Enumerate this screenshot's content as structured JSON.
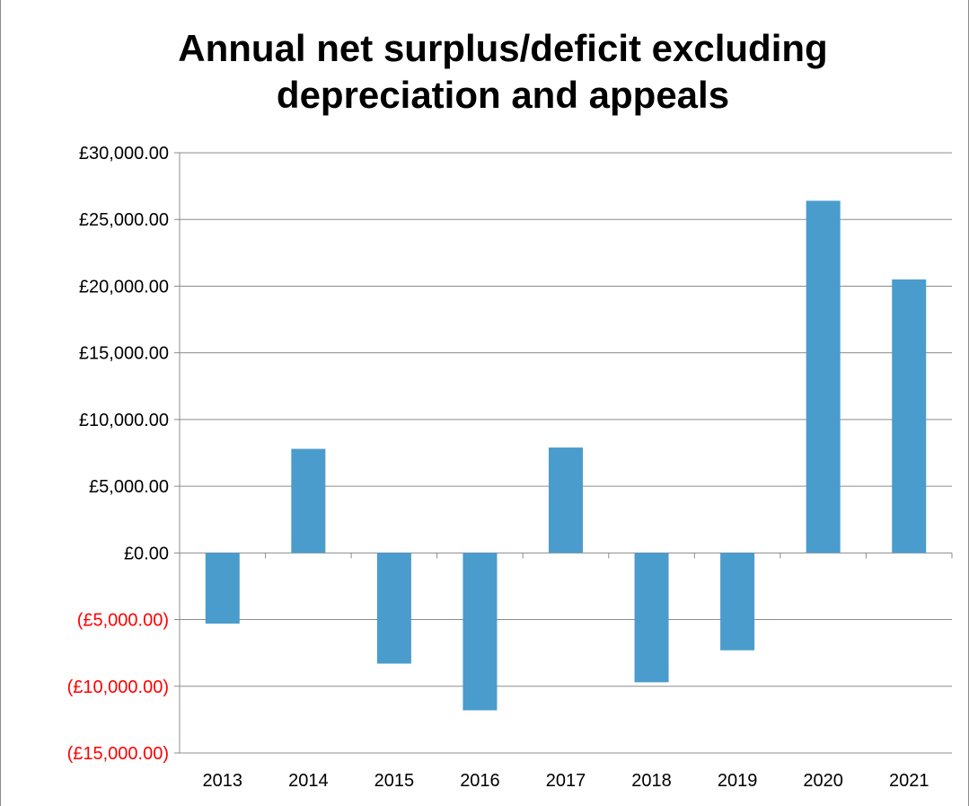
{
  "chart_data": {
    "type": "bar",
    "title": "Annual net surplus/deficit excluding depreciation and appeals",
    "categories": [
      "2013",
      "2014",
      "2015",
      "2016",
      "2017",
      "2018",
      "2019",
      "2020",
      "2021"
    ],
    "series": [
      {
        "values": [
          -5300,
          7800,
          -8300,
          -11800,
          7900,
          -9700,
          -7300,
          26400,
          20500
        ]
      }
    ],
    "ylim": [
      -15000,
      30000
    ],
    "ytick_values": [
      30000,
      25000,
      20000,
      15000,
      10000,
      5000,
      0,
      -5000,
      -10000,
      -15000
    ],
    "ytick_labels": [
      "£30,000.00",
      "£25,000.00",
      "£20,000.00",
      "£15,000.00",
      "£10,000.00",
      "£5,000.00",
      "£0.00",
      "(£5,000.00)",
      "(£10,000.00)",
      "(£15,000.00)"
    ],
    "xlabel": "",
    "ylabel": "",
    "grid": true,
    "legend": "none",
    "colors": {
      "bar": "#4a9ccc",
      "negative_label": "#ff0000",
      "positive_label": "#000000",
      "grid": "#8c8c8c"
    }
  }
}
